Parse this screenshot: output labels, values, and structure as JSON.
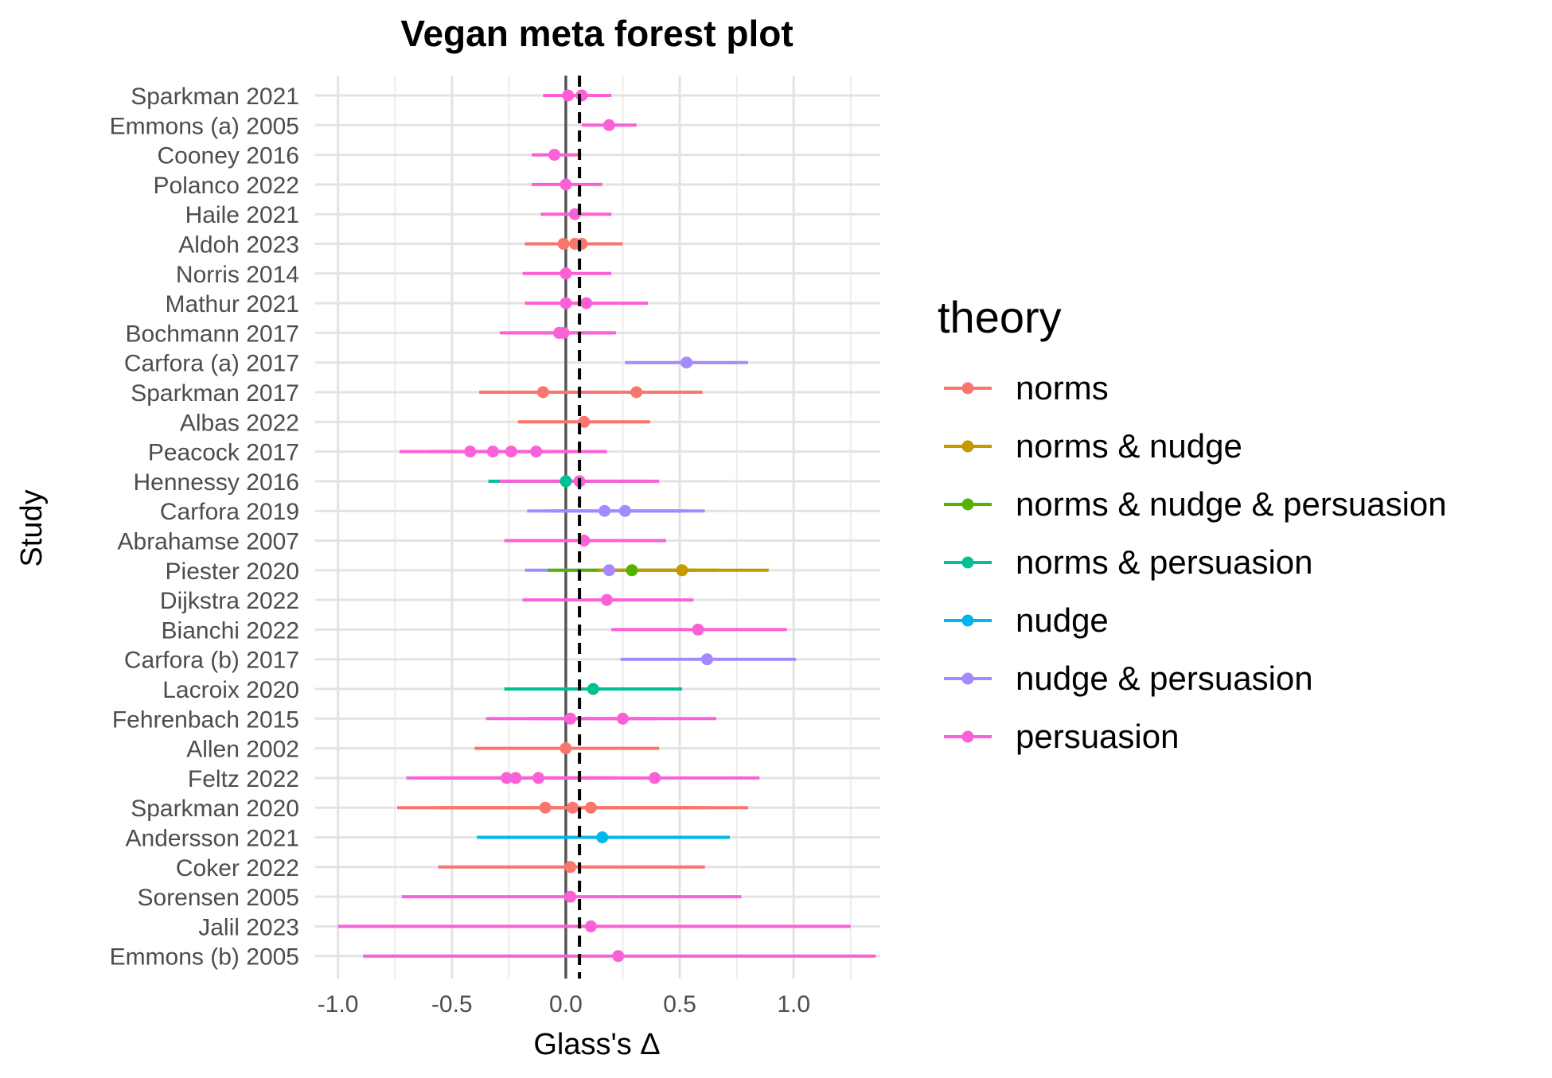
{
  "chart_data": {
    "type": "forest",
    "title": "Vegan meta forest plot",
    "xlabel": "Glass's Δ",
    "ylabel": "Study",
    "xlim": [
      -1.1,
      1.38
    ],
    "xticks": [
      -1.0,
      -0.5,
      0.0,
      0.5,
      1.0
    ],
    "xtick_labels": [
      "-1.0",
      "-0.5",
      "0.0",
      "0.5",
      "1.0"
    ],
    "reference_line_zero": 0.0,
    "pooled_estimate_dashed": 0.06,
    "grid": true,
    "legend": {
      "title": "theory",
      "placement": "right",
      "entries": [
        {
          "name": "norms",
          "color": "#F8766D"
        },
        {
          "name": "norms & nudge",
          "color": "#C49A00"
        },
        {
          "name": "norms & nudge & persuasion",
          "color": "#53B400"
        },
        {
          "name": "norms & persuasion",
          "color": "#00C094"
        },
        {
          "name": "nudge",
          "color": "#00B6EB"
        },
        {
          "name": "nudge & persuasion",
          "color": "#A58AFF"
        },
        {
          "name": "persuasion",
          "color": "#FB61D7"
        }
      ]
    },
    "studies": [
      {
        "study": "Sparkman 2021",
        "estimates": [
          {
            "theory": "persuasion",
            "est": 0.01,
            "lo": -0.1,
            "hi": 0.2
          },
          {
            "theory": "persuasion",
            "est": 0.07,
            "lo": -0.05,
            "hi": 0.18
          }
        ]
      },
      {
        "study": "Emmons (a) 2005",
        "estimates": [
          {
            "theory": "persuasion",
            "est": 0.19,
            "lo": 0.07,
            "hi": 0.31
          }
        ]
      },
      {
        "study": "Cooney 2016",
        "estimates": [
          {
            "theory": "persuasion",
            "est": -0.05,
            "lo": -0.15,
            "hi": 0.06
          }
        ]
      },
      {
        "study": "Polanco 2022",
        "estimates": [
          {
            "theory": "persuasion",
            "est": 0.0,
            "lo": -0.15,
            "hi": 0.16
          }
        ]
      },
      {
        "study": "Haile 2021",
        "estimates": [
          {
            "theory": "persuasion",
            "est": 0.04,
            "lo": -0.11,
            "hi": 0.2
          }
        ]
      },
      {
        "study": "Aldoh 2023",
        "estimates": [
          {
            "theory": "norms",
            "est": -0.01,
            "lo": -0.18,
            "hi": 0.17
          },
          {
            "theory": "norms",
            "est": 0.04,
            "lo": -0.15,
            "hi": 0.22
          },
          {
            "theory": "norms",
            "est": 0.07,
            "lo": -0.12,
            "hi": 0.25
          }
        ]
      },
      {
        "study": "Norris 2014",
        "estimates": [
          {
            "theory": "persuasion",
            "est": 0.0,
            "lo": -0.19,
            "hi": 0.2
          }
        ]
      },
      {
        "study": "Mathur 2021",
        "estimates": [
          {
            "theory": "persuasion",
            "est": 0.0,
            "lo": -0.18,
            "hi": 0.18
          },
          {
            "theory": "persuasion",
            "est": 0.09,
            "lo": -0.16,
            "hi": 0.36
          }
        ]
      },
      {
        "study": "Bochmann 2017",
        "estimates": [
          {
            "theory": "persuasion",
            "est": -0.03,
            "lo": -0.29,
            "hi": 0.22
          },
          {
            "theory": "persuasion",
            "est": -0.01,
            "lo": -0.25,
            "hi": 0.2
          }
        ]
      },
      {
        "study": "Carfora (a) 2017",
        "estimates": [
          {
            "theory": "nudge & persuasion",
            "est": 0.53,
            "lo": 0.26,
            "hi": 0.8
          }
        ]
      },
      {
        "study": "Sparkman 2017",
        "estimates": [
          {
            "theory": "norms",
            "est": -0.1,
            "lo": -0.38,
            "hi": 0.18
          },
          {
            "theory": "norms",
            "est": 0.31,
            "lo": 0.03,
            "hi": 0.6
          }
        ]
      },
      {
        "study": "Albas 2022",
        "estimates": [
          {
            "theory": "norms",
            "est": 0.08,
            "lo": -0.21,
            "hi": 0.37
          }
        ]
      },
      {
        "study": "Peacock 2017",
        "estimates": [
          {
            "theory": "persuasion",
            "est": -0.42,
            "lo": -0.73,
            "hi": -0.12
          },
          {
            "theory": "persuasion",
            "est": -0.32,
            "lo": -0.6,
            "hi": -0.04
          },
          {
            "theory": "persuasion",
            "est": -0.24,
            "lo": -0.52,
            "hi": 0.04
          },
          {
            "theory": "persuasion",
            "est": -0.13,
            "lo": -0.44,
            "hi": 0.18
          }
        ]
      },
      {
        "study": "Hennessy 2016",
        "estimates": [
          {
            "theory": "norms & persuasion",
            "est": 0.0,
            "lo": -0.34,
            "hi": 0.35
          },
          {
            "theory": "persuasion",
            "est": 0.06,
            "lo": -0.29,
            "hi": 0.41
          }
        ]
      },
      {
        "study": "Carfora 2019",
        "estimates": [
          {
            "theory": "nudge & persuasion",
            "est": 0.17,
            "lo": -0.17,
            "hi": 0.52
          },
          {
            "theory": "nudge & persuasion",
            "est": 0.26,
            "lo": -0.08,
            "hi": 0.61
          }
        ]
      },
      {
        "study": "Abrahamse 2007",
        "estimates": [
          {
            "theory": "persuasion",
            "est": 0.08,
            "lo": -0.27,
            "hi": 0.44
          }
        ]
      },
      {
        "study": "Piester 2020",
        "estimates": [
          {
            "theory": "nudge & persuasion",
            "est": 0.19,
            "lo": -0.18,
            "hi": 0.57
          },
          {
            "theory": "norms & nudge & persuasion",
            "est": 0.29,
            "lo": -0.08,
            "hi": 0.67
          },
          {
            "theory": "norms & nudge",
            "est": 0.51,
            "lo": 0.14,
            "hi": 0.89
          }
        ]
      },
      {
        "study": "Dijkstra 2022",
        "estimates": [
          {
            "theory": "persuasion",
            "est": 0.18,
            "lo": -0.19,
            "hi": 0.56
          }
        ]
      },
      {
        "study": "Bianchi 2022",
        "estimates": [
          {
            "theory": "persuasion",
            "est": 0.58,
            "lo": 0.2,
            "hi": 0.97
          }
        ]
      },
      {
        "study": "Carfora (b) 2017",
        "estimates": [
          {
            "theory": "nudge & persuasion",
            "est": 0.62,
            "lo": 0.24,
            "hi": 1.01
          }
        ]
      },
      {
        "study": "Lacroix 2020",
        "estimates": [
          {
            "theory": "norms & persuasion",
            "est": 0.12,
            "lo": -0.27,
            "hi": 0.51
          }
        ]
      },
      {
        "study": "Fehrenbach 2015",
        "estimates": [
          {
            "theory": "persuasion",
            "est": 0.02,
            "lo": -0.35,
            "hi": 0.4
          },
          {
            "theory": "persuasion",
            "est": 0.25,
            "lo": -0.16,
            "hi": 0.66
          }
        ]
      },
      {
        "study": "Allen 2002",
        "estimates": [
          {
            "theory": "norms",
            "est": 0.0,
            "lo": -0.4,
            "hi": 0.41
          }
        ]
      },
      {
        "study": "Feltz 2022",
        "estimates": [
          {
            "theory": "persuasion",
            "est": -0.26,
            "lo": -0.7,
            "hi": 0.18
          },
          {
            "theory": "persuasion",
            "est": -0.22,
            "lo": -0.65,
            "hi": 0.22
          },
          {
            "theory": "persuasion",
            "est": -0.12,
            "lo": -0.55,
            "hi": 0.32
          },
          {
            "theory": "persuasion",
            "est": 0.39,
            "lo": -0.06,
            "hi": 0.85
          }
        ]
      },
      {
        "study": "Sparkman 2020",
        "estimates": [
          {
            "theory": "norms",
            "est": -0.09,
            "lo": -0.74,
            "hi": 0.56
          },
          {
            "theory": "norms",
            "est": 0.03,
            "lo": -0.55,
            "hi": 0.62
          },
          {
            "theory": "norms",
            "est": 0.11,
            "lo": -0.57,
            "hi": 0.8
          }
        ]
      },
      {
        "study": "Andersson 2021",
        "estimates": [
          {
            "theory": "nudge",
            "est": 0.16,
            "lo": -0.39,
            "hi": 0.72
          }
        ]
      },
      {
        "study": "Coker 2022",
        "estimates": [
          {
            "theory": "norms",
            "est": 0.02,
            "lo": -0.56,
            "hi": 0.61
          }
        ]
      },
      {
        "study": "Sorensen 2005",
        "estimates": [
          {
            "theory": "persuasion",
            "est": 0.02,
            "lo": -0.72,
            "hi": 0.77
          }
        ]
      },
      {
        "study": "Jalil 2023",
        "estimates": [
          {
            "theory": "persuasion",
            "est": 0.11,
            "lo": -1.0,
            "hi": 1.25
          }
        ]
      },
      {
        "study": "Emmons (b) 2005",
        "estimates": [
          {
            "theory": "persuasion",
            "est": 0.23,
            "lo": -0.89,
            "hi": 1.36
          }
        ]
      }
    ]
  }
}
